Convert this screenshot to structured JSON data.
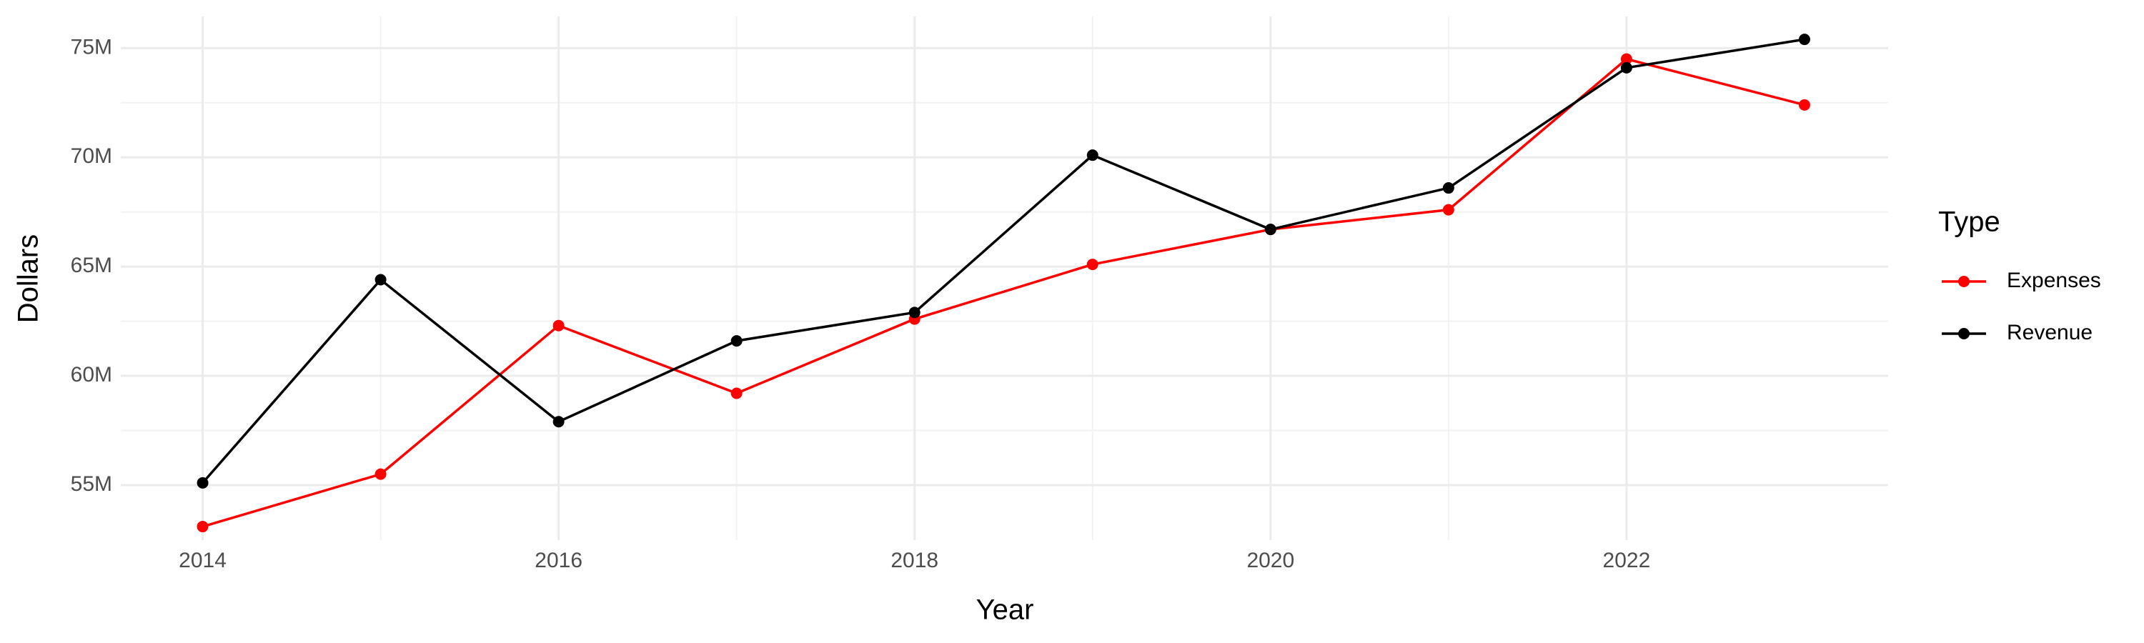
{
  "chart_data": {
    "type": "line",
    "xlabel": "Year",
    "ylabel": "Dollars",
    "legend_title": "Type",
    "x": [
      2014,
      2015,
      2016,
      2017,
      2018,
      2019,
      2020,
      2021,
      2022,
      2023
    ],
    "series": [
      {
        "name": "Expenses",
        "color": "#ff0000",
        "values": [
          53100000,
          55500000,
          62300000,
          59200000,
          62600000,
          65100000,
          66700000,
          67600000,
          74500000,
          72400000
        ]
      },
      {
        "name": "Revenue",
        "color": "#000000",
        "values": [
          55100000,
          64400000,
          57900000,
          61600000,
          62900000,
          70100000,
          66700000,
          68600000,
          74100000,
          75400000
        ]
      }
    ],
    "xlim": [
      2013.54,
      2023.47
    ],
    "ylim": [
      52480000,
      76450000
    ],
    "xticks": [
      2014,
      2016,
      2018,
      2020,
      2022
    ],
    "yticks": [
      {
        "value": 55000000,
        "label": "55M"
      },
      {
        "value": 60000000,
        "label": "60M"
      },
      {
        "value": 65000000,
        "label": "65M"
      },
      {
        "value": 70000000,
        "label": "70M"
      },
      {
        "value": 75000000,
        "label": "75M"
      }
    ],
    "grid": true,
    "legend_position": "right"
  }
}
